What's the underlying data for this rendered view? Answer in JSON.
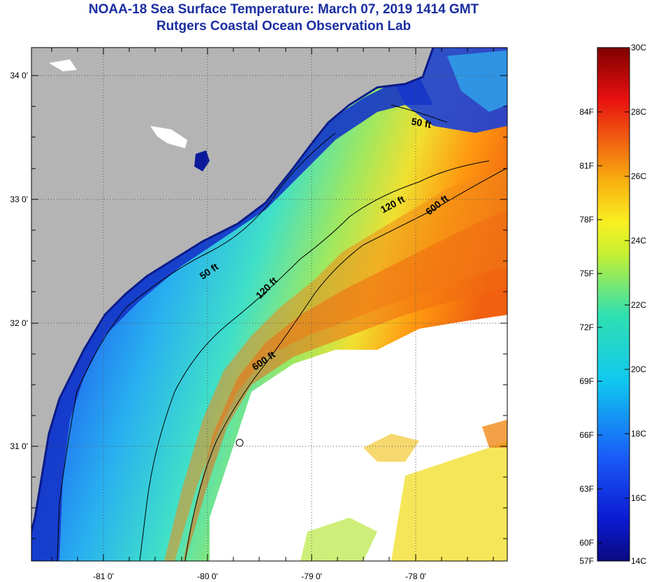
{
  "title": {
    "line1": "NOAA-18 Sea Surface Temperature:  March 07, 2019 1414 GMT",
    "line2": "Rutgers Coastal Ocean Observation Lab"
  },
  "map": {
    "lon_labels": [
      "-81 0'",
      "-80 0'",
      "-79 0'",
      "-78 0'"
    ],
    "lat_labels": [
      "34 0'",
      "33 0'",
      "32 0'",
      "31 0'"
    ],
    "contours": {
      "shallow": "50 ft",
      "shelf": "120 ft",
      "slope": "600 ft"
    },
    "contour_labels": [
      {
        "label": "50 ft",
        "rotation": 10
      },
      {
        "label": "50 ft",
        "rotation": -35
      },
      {
        "label": "120 ft",
        "rotation": -45
      },
      {
        "label": "120 ft",
        "rotation": -28
      },
      {
        "label": "600 ft",
        "rotation": -35
      },
      {
        "label": "600 ft",
        "rotation": -38
      }
    ]
  },
  "colorbar": {
    "fahrenheit_labels": [
      "84F",
      "81F",
      "78F",
      "75F",
      "72F",
      "69F",
      "66F",
      "63F",
      "60F",
      "57F"
    ],
    "celsius_labels": [
      "30C",
      "28C",
      "26C",
      "24C",
      "22C",
      "20C",
      "18C",
      "16C",
      "14C"
    ],
    "temp_min_c": 14,
    "temp_max_c": 30
  },
  "colors": {
    "title": "#1a2ea0",
    "land": "#b4b4b4",
    "cloud": "#ffffff"
  }
}
